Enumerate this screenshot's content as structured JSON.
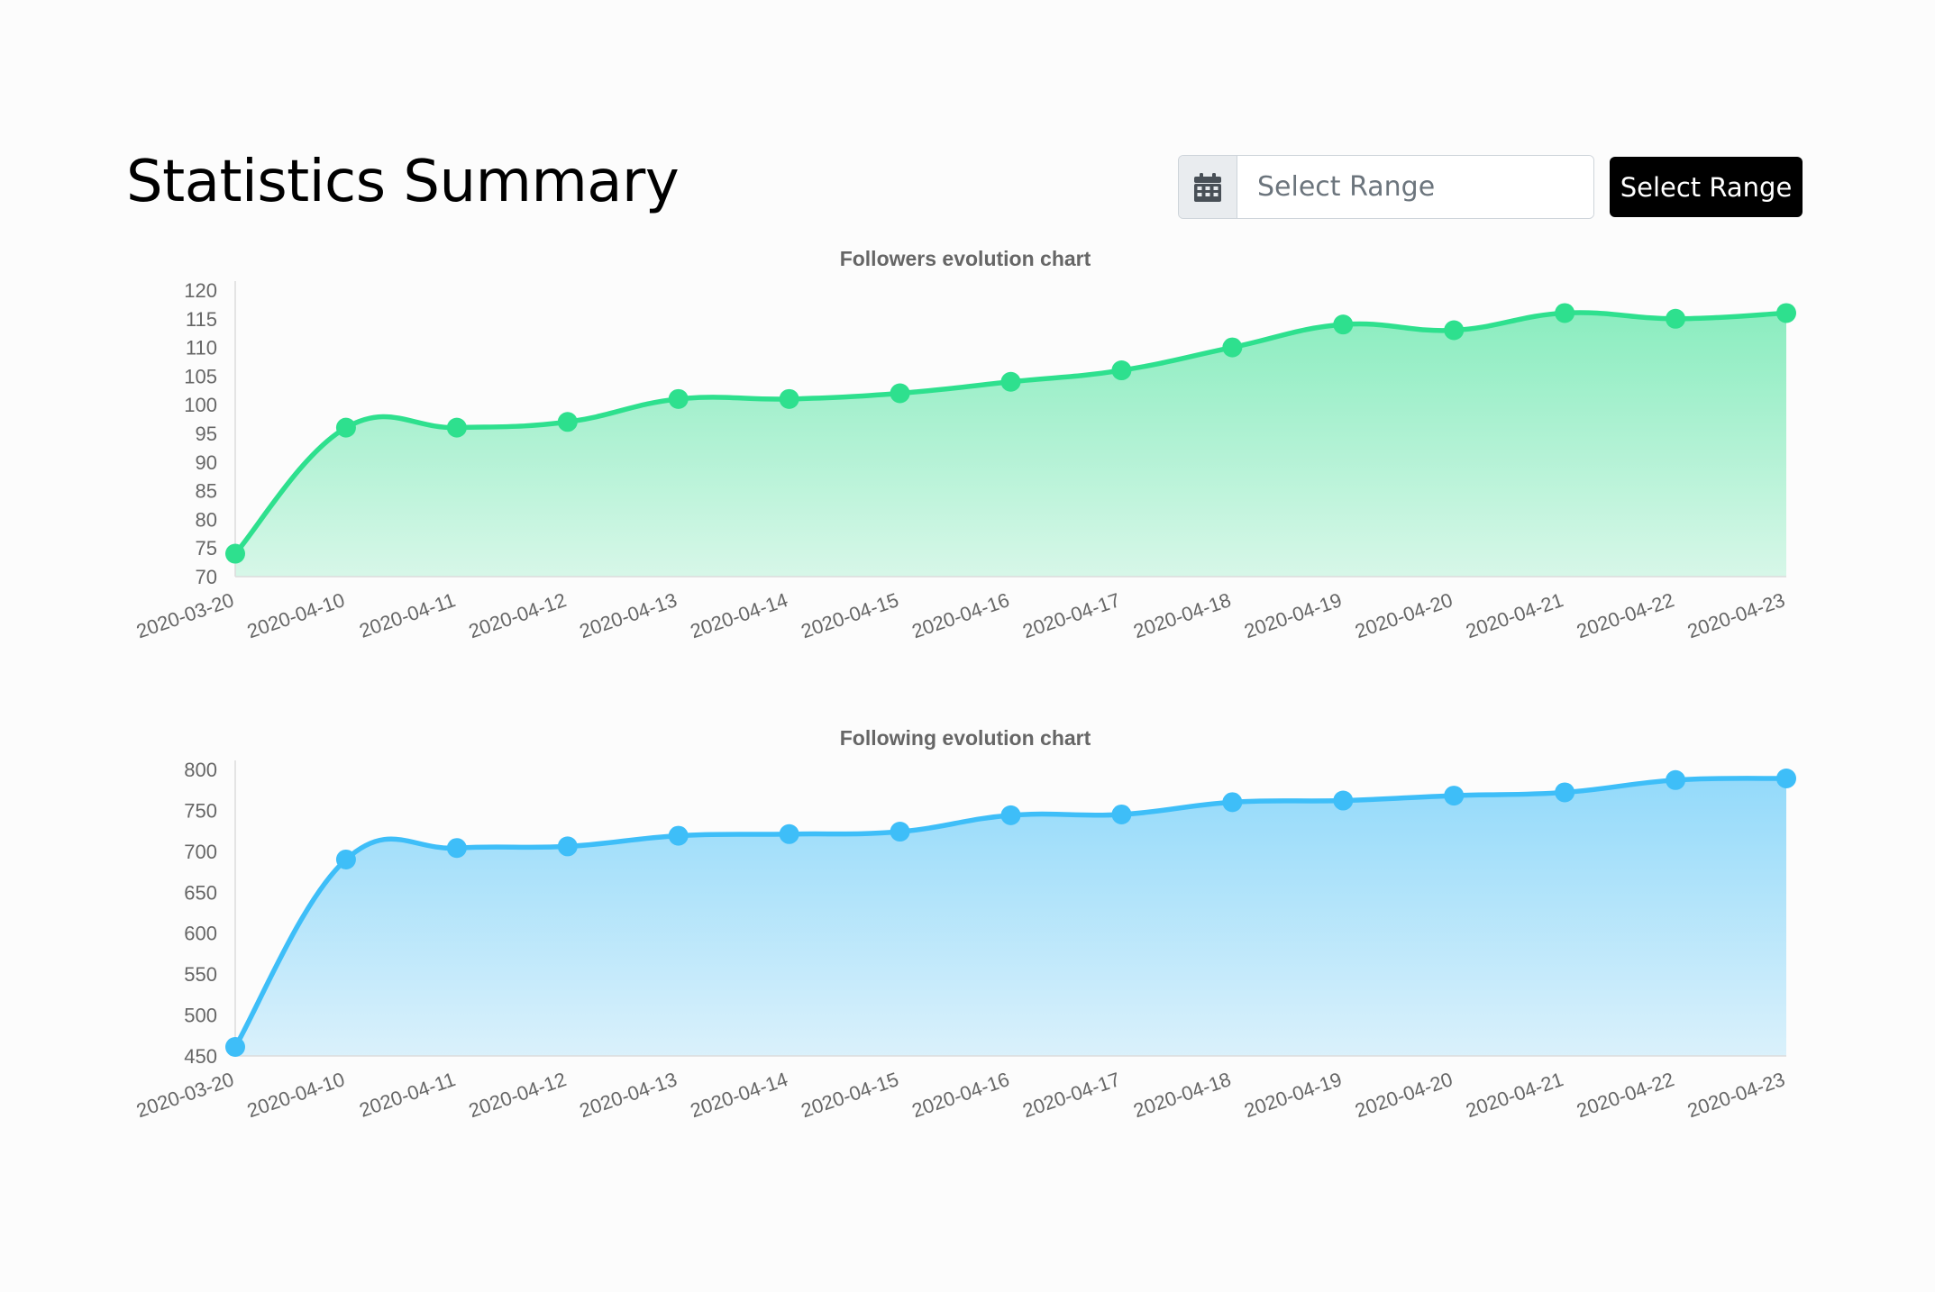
{
  "header": {
    "title": "Statistics Summary"
  },
  "range_picker": {
    "icon": "calendar-icon",
    "placeholder": "Select Range",
    "button_label": "Select Range"
  },
  "colors": {
    "followers": "#2ee08e",
    "following": "#3ebef8",
    "axis_text": "#666666",
    "button_bg": "#000000"
  },
  "chart_data": [
    {
      "id": "followers",
      "type": "area",
      "title": "Followers evolution chart",
      "categories": [
        "2020-03-20",
        "2020-04-10",
        "2020-04-11",
        "2020-04-12",
        "2020-04-13",
        "2020-04-14",
        "2020-04-15",
        "2020-04-16",
        "2020-04-17",
        "2020-04-18",
        "2020-04-19",
        "2020-04-20",
        "2020-04-21",
        "2020-04-22",
        "2020-04-23"
      ],
      "values": [
        74,
        96,
        96,
        97,
        101,
        101,
        102,
        104,
        106,
        110,
        114,
        113,
        116,
        115,
        116
      ],
      "ylim": [
        70,
        120
      ],
      "yticks": [
        70,
        75,
        80,
        85,
        90,
        95,
        100,
        105,
        110,
        115,
        120
      ],
      "color": "#2ee08e",
      "xlabel": "",
      "ylabel": "",
      "grid": false,
      "legend": "none"
    },
    {
      "id": "following",
      "type": "area",
      "title": "Following evolution chart",
      "categories": [
        "2020-03-20",
        "2020-04-10",
        "2020-04-11",
        "2020-04-12",
        "2020-04-13",
        "2020-04-14",
        "2020-04-15",
        "2020-04-16",
        "2020-04-17",
        "2020-04-18",
        "2020-04-19",
        "2020-04-20",
        "2020-04-21",
        "2020-04-22",
        "2020-04-23"
      ],
      "values": [
        461,
        690,
        704,
        706,
        719,
        721,
        724,
        744,
        745,
        760,
        762,
        768,
        772,
        787,
        789
      ],
      "ylim": [
        450,
        800
      ],
      "yticks": [
        450,
        500,
        550,
        600,
        650,
        700,
        750,
        800
      ],
      "color": "#3ebef8",
      "xlabel": "",
      "ylabel": "",
      "grid": false,
      "legend": "none"
    }
  ]
}
